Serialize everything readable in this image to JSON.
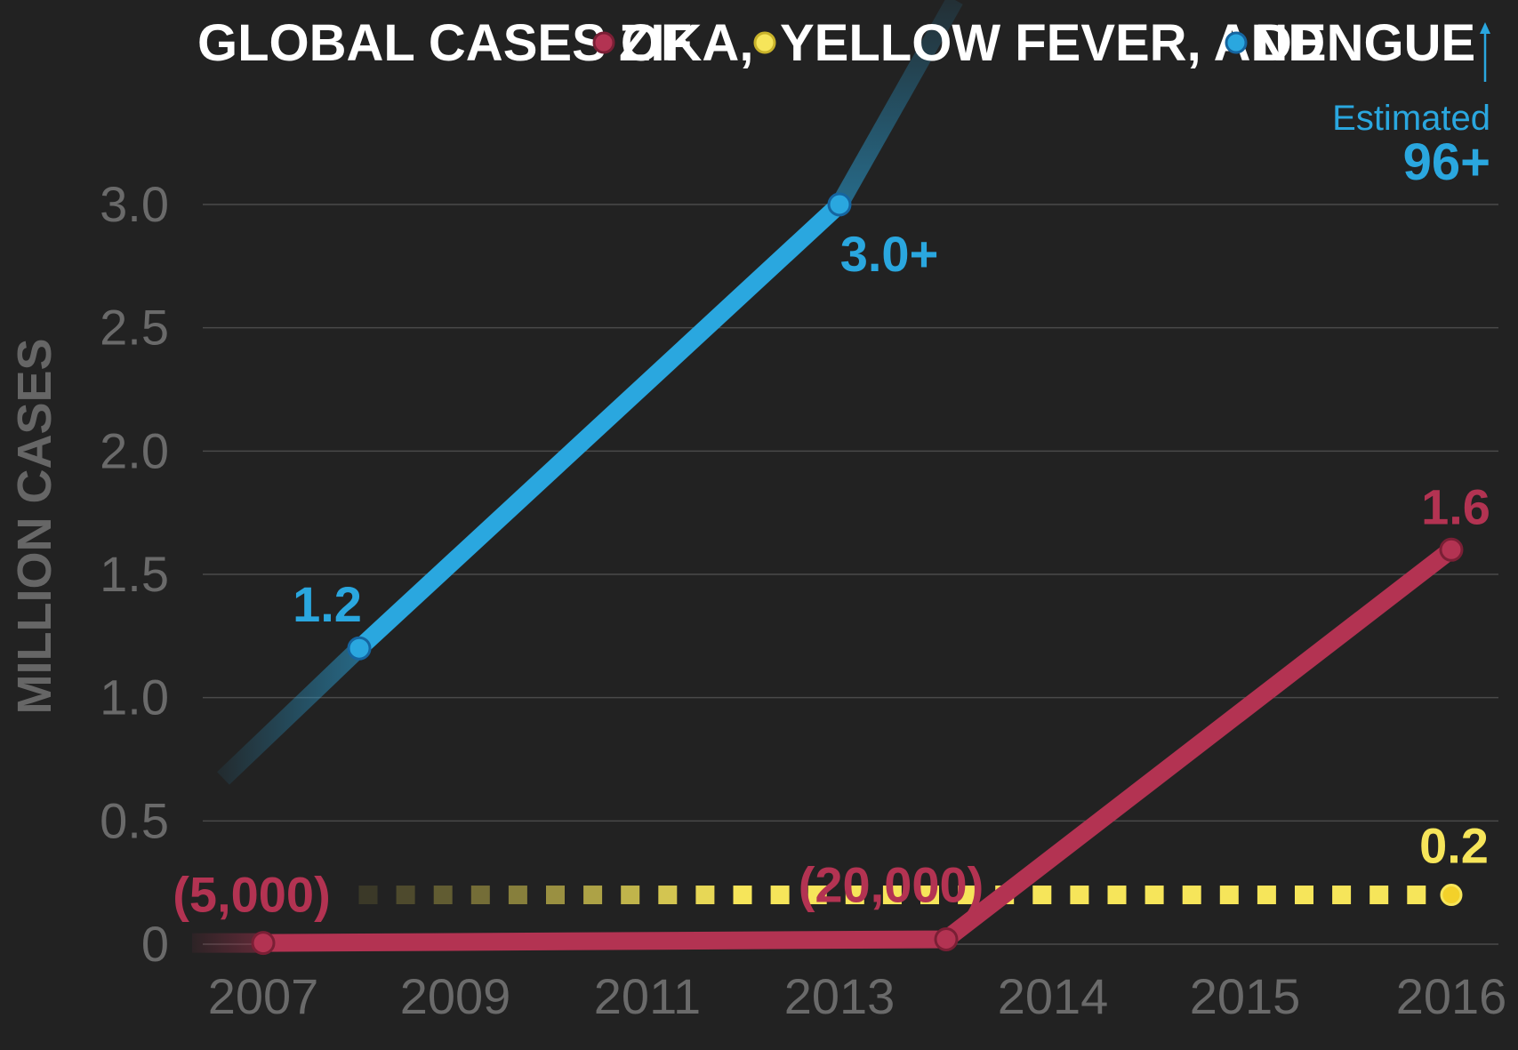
{
  "title": {
    "prefix": "GLOBAL CASES OF",
    "legend": [
      {
        "name": "ZIKA,",
        "color": "#b33352"
      },
      {
        "name": "YELLOW FEVER, AND",
        "color": "#f6e55a"
      },
      {
        "name": "DENGUE",
        "color": "#2aa7df"
      }
    ]
  },
  "annotation": {
    "label": "Estimated",
    "value": "96+",
    "icon": "up-arrow-icon",
    "color": "#2aa7df"
  },
  "chart_data": {
    "type": "line",
    "ylabel": "MILLION CASES",
    "xlabel": "",
    "ylim": [
      0,
      3.0
    ],
    "y_ticks": [
      {
        "value": 0,
        "label": "0"
      },
      {
        "value": 0.5,
        "label": "0.5"
      },
      {
        "value": 1.0,
        "label": "1.0"
      },
      {
        "value": 1.5,
        "label": "1.5"
      },
      {
        "value": 2.0,
        "label": "2.0"
      },
      {
        "value": 2.5,
        "label": "2.5"
      },
      {
        "value": 3.0,
        "label": "3.0"
      }
    ],
    "categories": [
      "2007",
      "2009",
      "2011",
      "2013",
      "2014",
      "2015",
      "2016"
    ],
    "grid": true,
    "series": [
      {
        "name": "DENGUE",
        "color": "#2aa7df",
        "points": [
          {
            "x": "2007",
            "y": 0.77
          },
          {
            "x": "2008",
            "y": 1.2,
            "label": "1.2"
          },
          {
            "x": "2013",
            "y": 3.0,
            "label": "3.0+"
          },
          {
            "x": "2013.5",
            "y": 3.9
          }
        ],
        "annotation": "Estimated 96+"
      },
      {
        "name": "ZIKA",
        "color": "#b33352",
        "points": [
          {
            "x": "2007",
            "y": 0.005,
            "label": "(5,000)"
          },
          {
            "x": "2013.5",
            "y": 0.02,
            "label": "(20,000)"
          },
          {
            "x": "2016",
            "y": 1.6,
            "label": "1.6"
          }
        ]
      },
      {
        "name": "YELLOW FEVER",
        "color": "#f6e55a",
        "points": [
          {
            "x": "2007",
            "y": 0.2
          },
          {
            "x": "2016",
            "y": 0.2,
            "label": "0.2"
          }
        ]
      }
    ]
  }
}
